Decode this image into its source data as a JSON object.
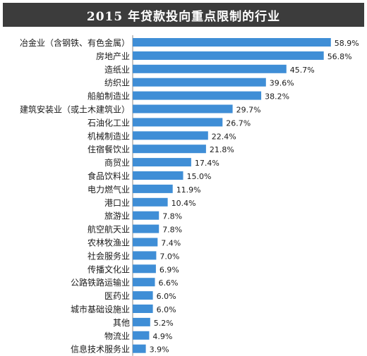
{
  "title": "2015 年贷款投向重点限制的行业",
  "colors": {
    "bar": "#3f8ed6",
    "title_bg": "#3c3c3c"
  },
  "chart_data": {
    "type": "bar",
    "orientation": "horizontal",
    "title": "2015 年贷款投向重点限制的行业",
    "xlabel": "",
    "ylabel": "",
    "xlim": [
      0,
      60
    ],
    "grid": false,
    "value_suffix": "%",
    "categories": [
      "冶金业（含钢铁、有色金属）",
      "房地产业",
      "造纸业",
      "纺织业",
      "船舶制造业",
      "建筑安装业（或土木建筑业）",
      "石油化工业",
      "机械制造业",
      "住宿餐饮业",
      "商贸业",
      "食品饮料业",
      "电力燃气业",
      "港口业",
      "旅游业",
      "航空航天业",
      "农林牧渔业",
      "社会服务业",
      "传播文化业",
      "公路铁路运输业",
      "医药业",
      "城市基础设施业",
      "其他",
      "物流业",
      "信息技术服务业"
    ],
    "values": [
      58.9,
      56.8,
      45.7,
      39.6,
      38.2,
      29.7,
      26.7,
      22.4,
      21.8,
      17.4,
      15.0,
      11.9,
      10.4,
      7.8,
      7.8,
      7.4,
      7.0,
      6.9,
      6.6,
      6.0,
      6.0,
      5.2,
      4.9,
      3.9
    ],
    "value_labels": [
      "58.9%",
      "56.8%",
      "45.7%",
      "39.6%",
      "38.2%",
      "29.7%",
      "26.7%",
      "22.4%",
      "21.8%",
      "17.4%",
      "15.0%",
      "11.9%",
      "10.4%",
      "7.8%",
      "7.8%",
      "7.4%",
      "7.0%",
      "6.9%",
      "6.6%",
      "6.0%",
      "6.0%",
      "5.2%",
      "4.9%",
      "3.9%"
    ]
  }
}
